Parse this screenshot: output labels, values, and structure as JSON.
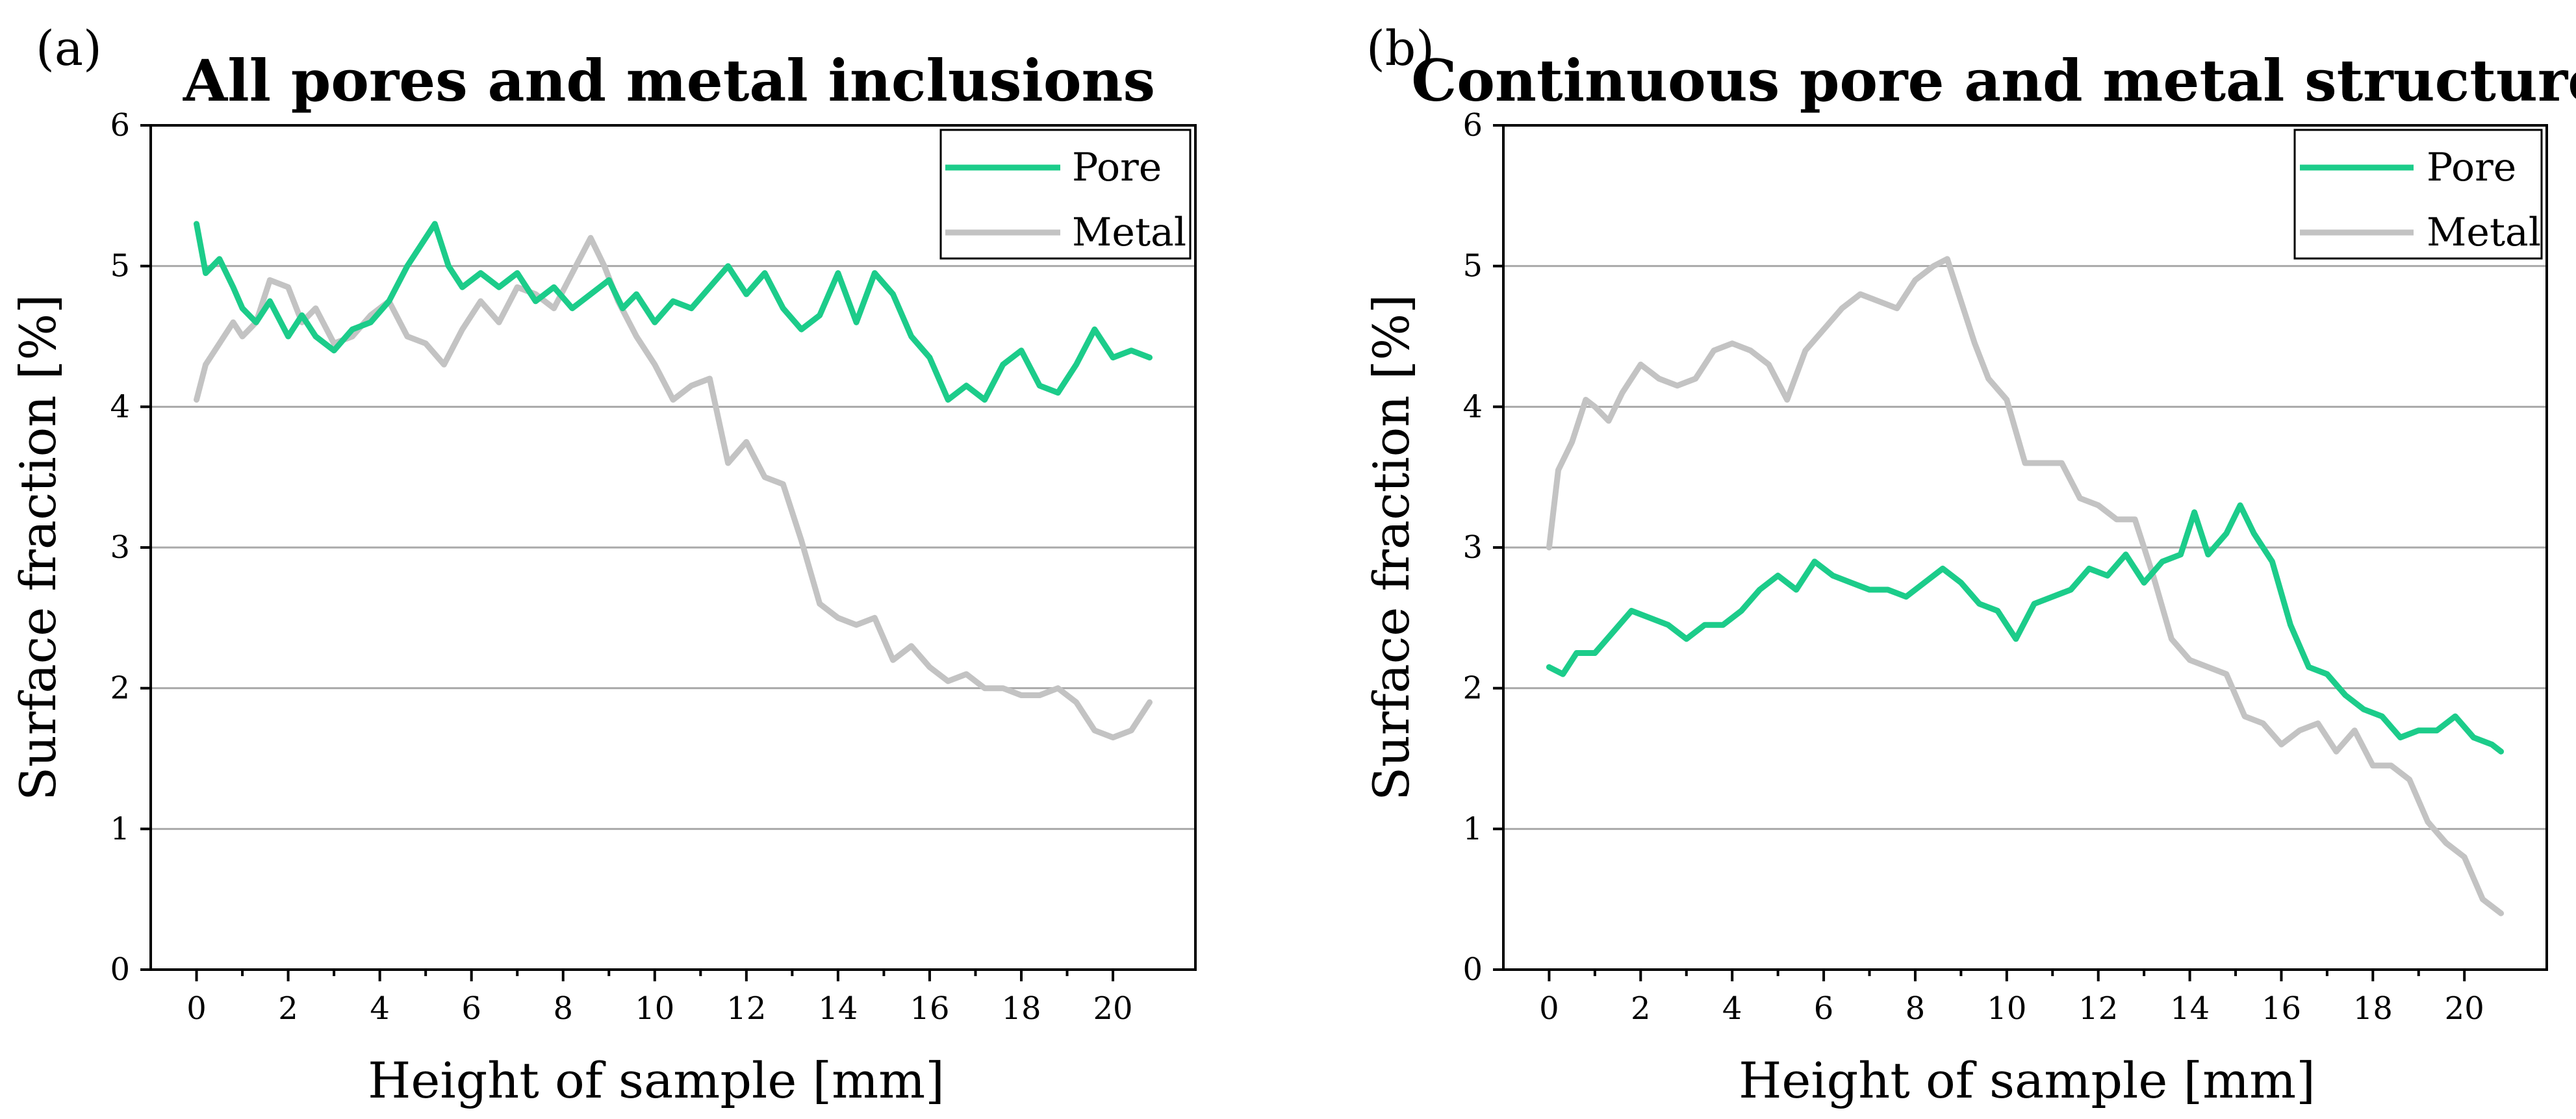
{
  "chart_data": [
    {
      "type": "line",
      "panel_label": "(a)",
      "title": "All pores and metal inclusions",
      "xlabel": "Height of sample [mm]",
      "ylabel": "Surface fraction [%]",
      "xlim": [
        -1,
        21.8
      ],
      "ylim": [
        0,
        6
      ],
      "xticks": [
        0,
        2,
        4,
        6,
        8,
        10,
        12,
        14,
        16,
        18,
        20
      ],
      "yticks": [
        0,
        1,
        2,
        3,
        4,
        5,
        6
      ],
      "grid": "horizontal",
      "legend": "top-right",
      "series": [
        {
          "name": "Pore",
          "color": "#1ccc8a",
          "x": [
            0,
            0.2,
            0.5,
            0.8,
            1.0,
            1.3,
            1.6,
            2.0,
            2.3,
            2.6,
            3.0,
            3.4,
            3.8,
            4.2,
            4.6,
            5.0,
            5.2,
            5.5,
            5.8,
            6.2,
            6.6,
            7.0,
            7.4,
            7.8,
            8.2,
            8.6,
            9.0,
            9.3,
            9.6,
            10.0,
            10.4,
            10.8,
            11.2,
            11.6,
            12.0,
            12.4,
            12.8,
            13.2,
            13.6,
            14.0,
            14.4,
            14.8,
            15.2,
            15.6,
            16.0,
            16.4,
            16.8,
            17.2,
            17.6,
            18.0,
            18.4,
            18.8,
            19.2,
            19.6,
            20.0,
            20.4,
            20.8
          ],
          "values": [
            5.3,
            4.95,
            5.05,
            4.85,
            4.7,
            4.6,
            4.75,
            4.5,
            4.65,
            4.5,
            4.4,
            4.55,
            4.6,
            4.75,
            5.0,
            5.2,
            5.3,
            5.0,
            4.85,
            4.95,
            4.85,
            4.95,
            4.75,
            4.85,
            4.7,
            4.8,
            4.9,
            4.7,
            4.8,
            4.6,
            4.75,
            4.7,
            4.85,
            5.0,
            4.8,
            4.95,
            4.7,
            4.55,
            4.65,
            4.95,
            4.6,
            4.95,
            4.8,
            4.5,
            4.35,
            4.05,
            4.15,
            4.05,
            4.3,
            4.4,
            4.15,
            4.1,
            4.3,
            4.55,
            4.35,
            4.4,
            4.35
          ]
        },
        {
          "name": "Metal",
          "color": "#c3c3c3",
          "x": [
            0,
            0.2,
            0.5,
            0.8,
            1.0,
            1.3,
            1.6,
            2.0,
            2.3,
            2.6,
            3.0,
            3.4,
            3.8,
            4.2,
            4.6,
            5.0,
            5.4,
            5.8,
            6.2,
            6.6,
            7.0,
            7.4,
            7.8,
            8.2,
            8.6,
            8.9,
            9.2,
            9.6,
            10.0,
            10.4,
            10.8,
            11.2,
            11.6,
            12.0,
            12.4,
            12.8,
            13.2,
            13.6,
            14.0,
            14.4,
            14.8,
            15.2,
            15.6,
            16.0,
            16.4,
            16.8,
            17.2,
            17.6,
            18.0,
            18.4,
            18.8,
            19.2,
            19.6,
            20.0,
            20.4,
            20.8
          ],
          "values": [
            4.05,
            4.3,
            4.45,
            4.6,
            4.5,
            4.6,
            4.9,
            4.85,
            4.6,
            4.7,
            4.45,
            4.5,
            4.65,
            4.75,
            4.5,
            4.45,
            4.3,
            4.55,
            4.75,
            4.6,
            4.85,
            4.8,
            4.7,
            4.95,
            5.2,
            5.0,
            4.75,
            4.5,
            4.3,
            4.05,
            4.15,
            4.2,
            3.6,
            3.75,
            3.5,
            3.45,
            3.05,
            2.6,
            2.5,
            2.45,
            2.5,
            2.2,
            2.3,
            2.15,
            2.05,
            2.1,
            2.0,
            2.0,
            1.95,
            1.95,
            2.0,
            1.9,
            1.7,
            1.65,
            1.7,
            1.9
          ]
        }
      ]
    },
    {
      "type": "line",
      "panel_label": "(b)",
      "title": "Continuous pore and metal structures",
      "xlabel": "Height of sample [mm]",
      "ylabel": "Surface fraction [%]",
      "xlim": [
        -1,
        21.8
      ],
      "ylim": [
        0,
        6
      ],
      "xticks": [
        0,
        2,
        4,
        6,
        8,
        10,
        12,
        14,
        16,
        18,
        20
      ],
      "yticks": [
        0,
        1,
        2,
        3,
        4,
        5,
        6
      ],
      "grid": "horizontal",
      "legend": "top-right",
      "series": [
        {
          "name": "Pore",
          "color": "#1ccc8a",
          "x": [
            0,
            0.3,
            0.6,
            1.0,
            1.4,
            1.8,
            2.2,
            2.6,
            3.0,
            3.4,
            3.8,
            4.2,
            4.6,
            5.0,
            5.4,
            5.8,
            6.2,
            6.6,
            7.0,
            7.4,
            7.8,
            8.2,
            8.6,
            9.0,
            9.4,
            9.8,
            10.2,
            10.6,
            11.0,
            11.4,
            11.8,
            12.2,
            12.6,
            13.0,
            13.4,
            13.8,
            14.1,
            14.4,
            14.8,
            15.1,
            15.4,
            15.8,
            16.2,
            16.6,
            17.0,
            17.4,
            17.8,
            18.2,
            18.6,
            19.0,
            19.4,
            19.8,
            20.2,
            20.6,
            20.8
          ],
          "values": [
            2.15,
            2.1,
            2.25,
            2.25,
            2.4,
            2.55,
            2.5,
            2.45,
            2.35,
            2.45,
            2.45,
            2.55,
            2.7,
            2.8,
            2.7,
            2.9,
            2.8,
            2.75,
            2.7,
            2.7,
            2.65,
            2.75,
            2.85,
            2.75,
            2.6,
            2.55,
            2.35,
            2.6,
            2.65,
            2.7,
            2.85,
            2.8,
            2.95,
            2.75,
            2.9,
            2.95,
            3.25,
            2.95,
            3.1,
            3.3,
            3.1,
            2.9,
            2.45,
            2.15,
            2.1,
            1.95,
            1.85,
            1.8,
            1.65,
            1.7,
            1.7,
            1.8,
            1.65,
            1.6,
            1.55
          ]
        },
        {
          "name": "Metal",
          "color": "#c3c3c3",
          "x": [
            0,
            0.2,
            0.5,
            0.8,
            1.0,
            1.3,
            1.6,
            2.0,
            2.4,
            2.8,
            3.2,
            3.6,
            4.0,
            4.4,
            4.8,
            5.2,
            5.6,
            6.0,
            6.4,
            6.8,
            7.2,
            7.6,
            8.0,
            8.4,
            8.7,
            9.0,
            9.3,
            9.6,
            10.0,
            10.4,
            10.8,
            11.2,
            11.6,
            12.0,
            12.4,
            12.8,
            13.2,
            13.6,
            14.0,
            14.4,
            14.8,
            15.2,
            15.6,
            16.0,
            16.4,
            16.8,
            17.2,
            17.6,
            18.0,
            18.4,
            18.8,
            19.2,
            19.6,
            20.0,
            20.4,
            20.8
          ],
          "values": [
            3.0,
            3.55,
            3.75,
            4.05,
            4.0,
            3.9,
            4.1,
            4.3,
            4.2,
            4.15,
            4.2,
            4.4,
            4.45,
            4.4,
            4.3,
            4.05,
            4.4,
            4.55,
            4.7,
            4.8,
            4.75,
            4.7,
            4.9,
            5.0,
            5.05,
            4.75,
            4.45,
            4.2,
            4.05,
            3.6,
            3.6,
            3.6,
            3.35,
            3.3,
            3.2,
            3.2,
            2.8,
            2.35,
            2.2,
            2.15,
            2.1,
            1.8,
            1.75,
            1.6,
            1.7,
            1.75,
            1.55,
            1.7,
            1.45,
            1.45,
            1.35,
            1.05,
            0.9,
            0.8,
            0.5,
            0.4
          ]
        }
      ]
    }
  ]
}
